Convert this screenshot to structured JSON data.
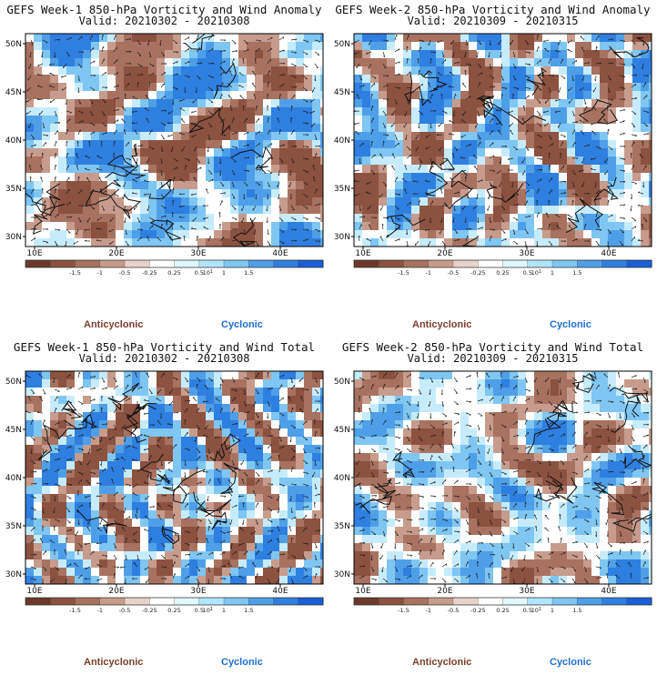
{
  "panels": [
    {
      "title": "GEFS Week-1 850-hPa Vorticity and Wind Anomaly",
      "valid": "Valid: 20210302 - 20210308",
      "seed": 11
    },
    {
      "title": "GEFS Week-2 850-hPa Vorticity and Wind Anomaly",
      "valid": "Valid: 20210309 - 20210315",
      "seed": 23
    },
    {
      "title": "GEFS Week-1 850-hPa Vorticity and Wind Total",
      "valid": "Valid: 20210302 - 20210308",
      "seed": 37
    },
    {
      "title": "GEFS Week-2 850-hPa Vorticity and Wind Total",
      "valid": "Valid: 20210309 - 20210315",
      "seed": 53
    }
  ],
  "lat_labels": [
    "50N",
    "45N",
    "40N",
    "35N",
    "30N"
  ],
  "lon_labels": [
    "10E",
    "20E",
    "30E",
    "40E"
  ],
  "colorbar": {
    "colors": [
      "#6b3a2c",
      "#8b5240",
      "#a87260",
      "#c79c8c",
      "#e8d3cb",
      "#ffffff",
      "#e2f8ff",
      "#b0e6fb",
      "#7fc6f2",
      "#4f9fe8",
      "#2f7fe0",
      "#1a5fd6"
    ],
    "labels": [
      "-1.5",
      "-1",
      "-0.5",
      "-0.25",
      "0.25",
      "0.5",
      "1",
      "1.5"
    ],
    "scale": "10",
    "scale_exp": "1"
  },
  "legend": {
    "anticyclonic": "Anticyclonic",
    "cyclonic": "Cyclonic",
    "anticyclonic_color": "#7a3e2c",
    "cyclonic_color": "#1f6fd6"
  }
}
